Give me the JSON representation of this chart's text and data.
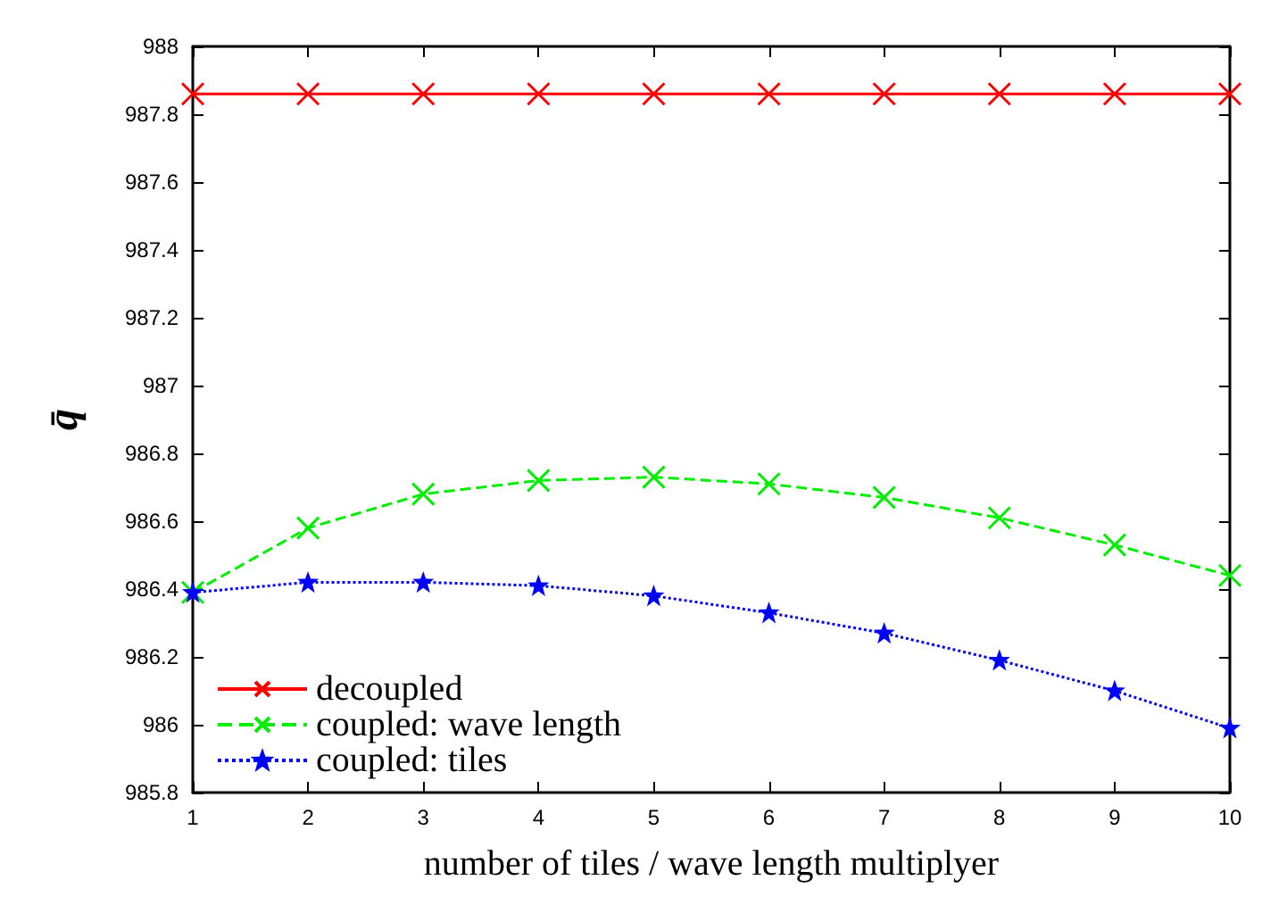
{
  "chart_data": {
    "type": "line",
    "xlabel": "number of tiles / wave length multiplyer",
    "ylabel": "q̄",
    "x": [
      1,
      2,
      3,
      4,
      5,
      6,
      7,
      8,
      9,
      10
    ],
    "series": [
      {
        "name": "decoupled",
        "color": "#ff0000",
        "marker": "cross",
        "line_style": "solid",
        "values": [
          987.86,
          987.86,
          987.86,
          987.86,
          987.86,
          987.86,
          987.86,
          987.86,
          987.86,
          987.86
        ]
      },
      {
        "name": "coupled: wave length",
        "color": "#00ee00",
        "marker": "cross",
        "line_style": "dashed",
        "values": [
          986.39,
          986.58,
          986.68,
          986.72,
          986.73,
          986.71,
          986.67,
          986.61,
          986.53,
          986.44
        ]
      },
      {
        "name": "coupled: tiles",
        "color": "#0000ff",
        "marker": "star",
        "line_style": "dotted",
        "values": [
          986.39,
          986.42,
          986.42,
          986.41,
          986.38,
          986.33,
          986.27,
          986.19,
          986.1,
          985.99
        ]
      }
    ],
    "xlim": [
      1,
      10
    ],
    "xticks": [
      1,
      2,
      3,
      4,
      5,
      6,
      7,
      8,
      9,
      10
    ],
    "ylim": [
      985.8,
      988
    ],
    "yticks": [
      985.8,
      986,
      986.2,
      986.4,
      986.6,
      986.8,
      987,
      987.2,
      987.4,
      987.6,
      987.8,
      988
    ],
    "grid": false,
    "legend": "bottom left"
  }
}
